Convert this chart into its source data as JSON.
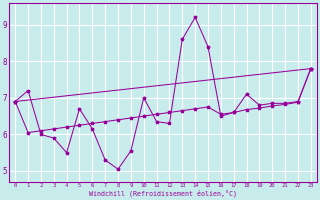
{
  "xlabel": "Windchill (Refroidissement éolien,°C)",
  "bg_color": "#c8ecec",
  "line_color": "#990099",
  "grid_color": "#ffffff",
  "xlim": [
    -0.5,
    23.5
  ],
  "ylim": [
    4.7,
    9.6
  ],
  "xticks": [
    0,
    1,
    2,
    3,
    4,
    5,
    6,
    7,
    8,
    9,
    10,
    11,
    12,
    13,
    14,
    15,
    16,
    17,
    18,
    19,
    20,
    21,
    22,
    23
  ],
  "yticks": [
    5,
    6,
    7,
    8,
    9
  ],
  "series1_x": [
    0,
    1,
    2,
    3,
    4,
    5,
    6,
    7,
    8,
    9,
    10,
    11,
    12,
    13,
    14,
    15,
    16,
    17,
    18,
    19,
    20,
    21,
    22,
    23
  ],
  "series1_y": [
    6.9,
    7.2,
    6.0,
    5.9,
    5.5,
    6.7,
    6.15,
    5.3,
    5.05,
    5.55,
    7.0,
    6.35,
    6.3,
    8.6,
    9.2,
    8.4,
    6.5,
    6.6,
    7.1,
    6.8,
    6.85,
    6.85,
    6.9,
    7.8
  ],
  "series2_x": [
    0,
    1,
    2,
    3,
    4,
    5,
    6,
    7,
    8,
    9,
    10,
    11,
    12,
    13,
    14,
    15,
    16,
    17,
    18,
    19,
    20,
    21,
    22,
    23
  ],
  "series2_y": [
    6.9,
    6.05,
    6.1,
    6.15,
    6.2,
    6.25,
    6.3,
    6.35,
    6.4,
    6.45,
    6.5,
    6.55,
    6.6,
    6.65,
    6.7,
    6.75,
    6.55,
    6.6,
    6.68,
    6.72,
    6.78,
    6.82,
    6.88,
    7.8
  ],
  "series3_x": [
    0,
    23
  ],
  "series3_y": [
    6.9,
    7.8
  ]
}
